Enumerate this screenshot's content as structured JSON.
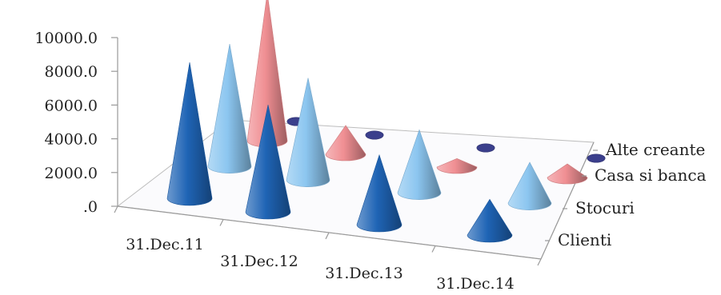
{
  "chart_data": {
    "type": "bar",
    "shape": "cone-3d",
    "categories": [
      "31.Dec.11",
      "31.Dec.12",
      "31.Dec.13",
      "31.Dec.14"
    ],
    "series": [
      {
        "name": "Clienti",
        "values": [
          8000,
          6300,
          4100,
          2100
        ],
        "color": "#1f64b5"
      },
      {
        "name": "Stocuri",
        "values": [
          7200,
          6000,
          3700,
          2400
        ],
        "color": "#8cc6f0"
      },
      {
        "name": "Casa si banca",
        "values": [
          8700,
          1700,
          500,
          800
        ],
        "color": "#f08f93"
      },
      {
        "name": "Alte creante",
        "values": [
          0,
          0,
          0,
          0
        ],
        "color": "#3b3f8c"
      }
    ],
    "y_ticks": [
      "10000.0",
      "8000.0",
      "6000.0",
      "4000.0",
      "2000.0",
      ".0"
    ],
    "ylim": [
      0,
      10000
    ],
    "title": "",
    "xlabel": "",
    "ylabel": "",
    "grid": false
  }
}
